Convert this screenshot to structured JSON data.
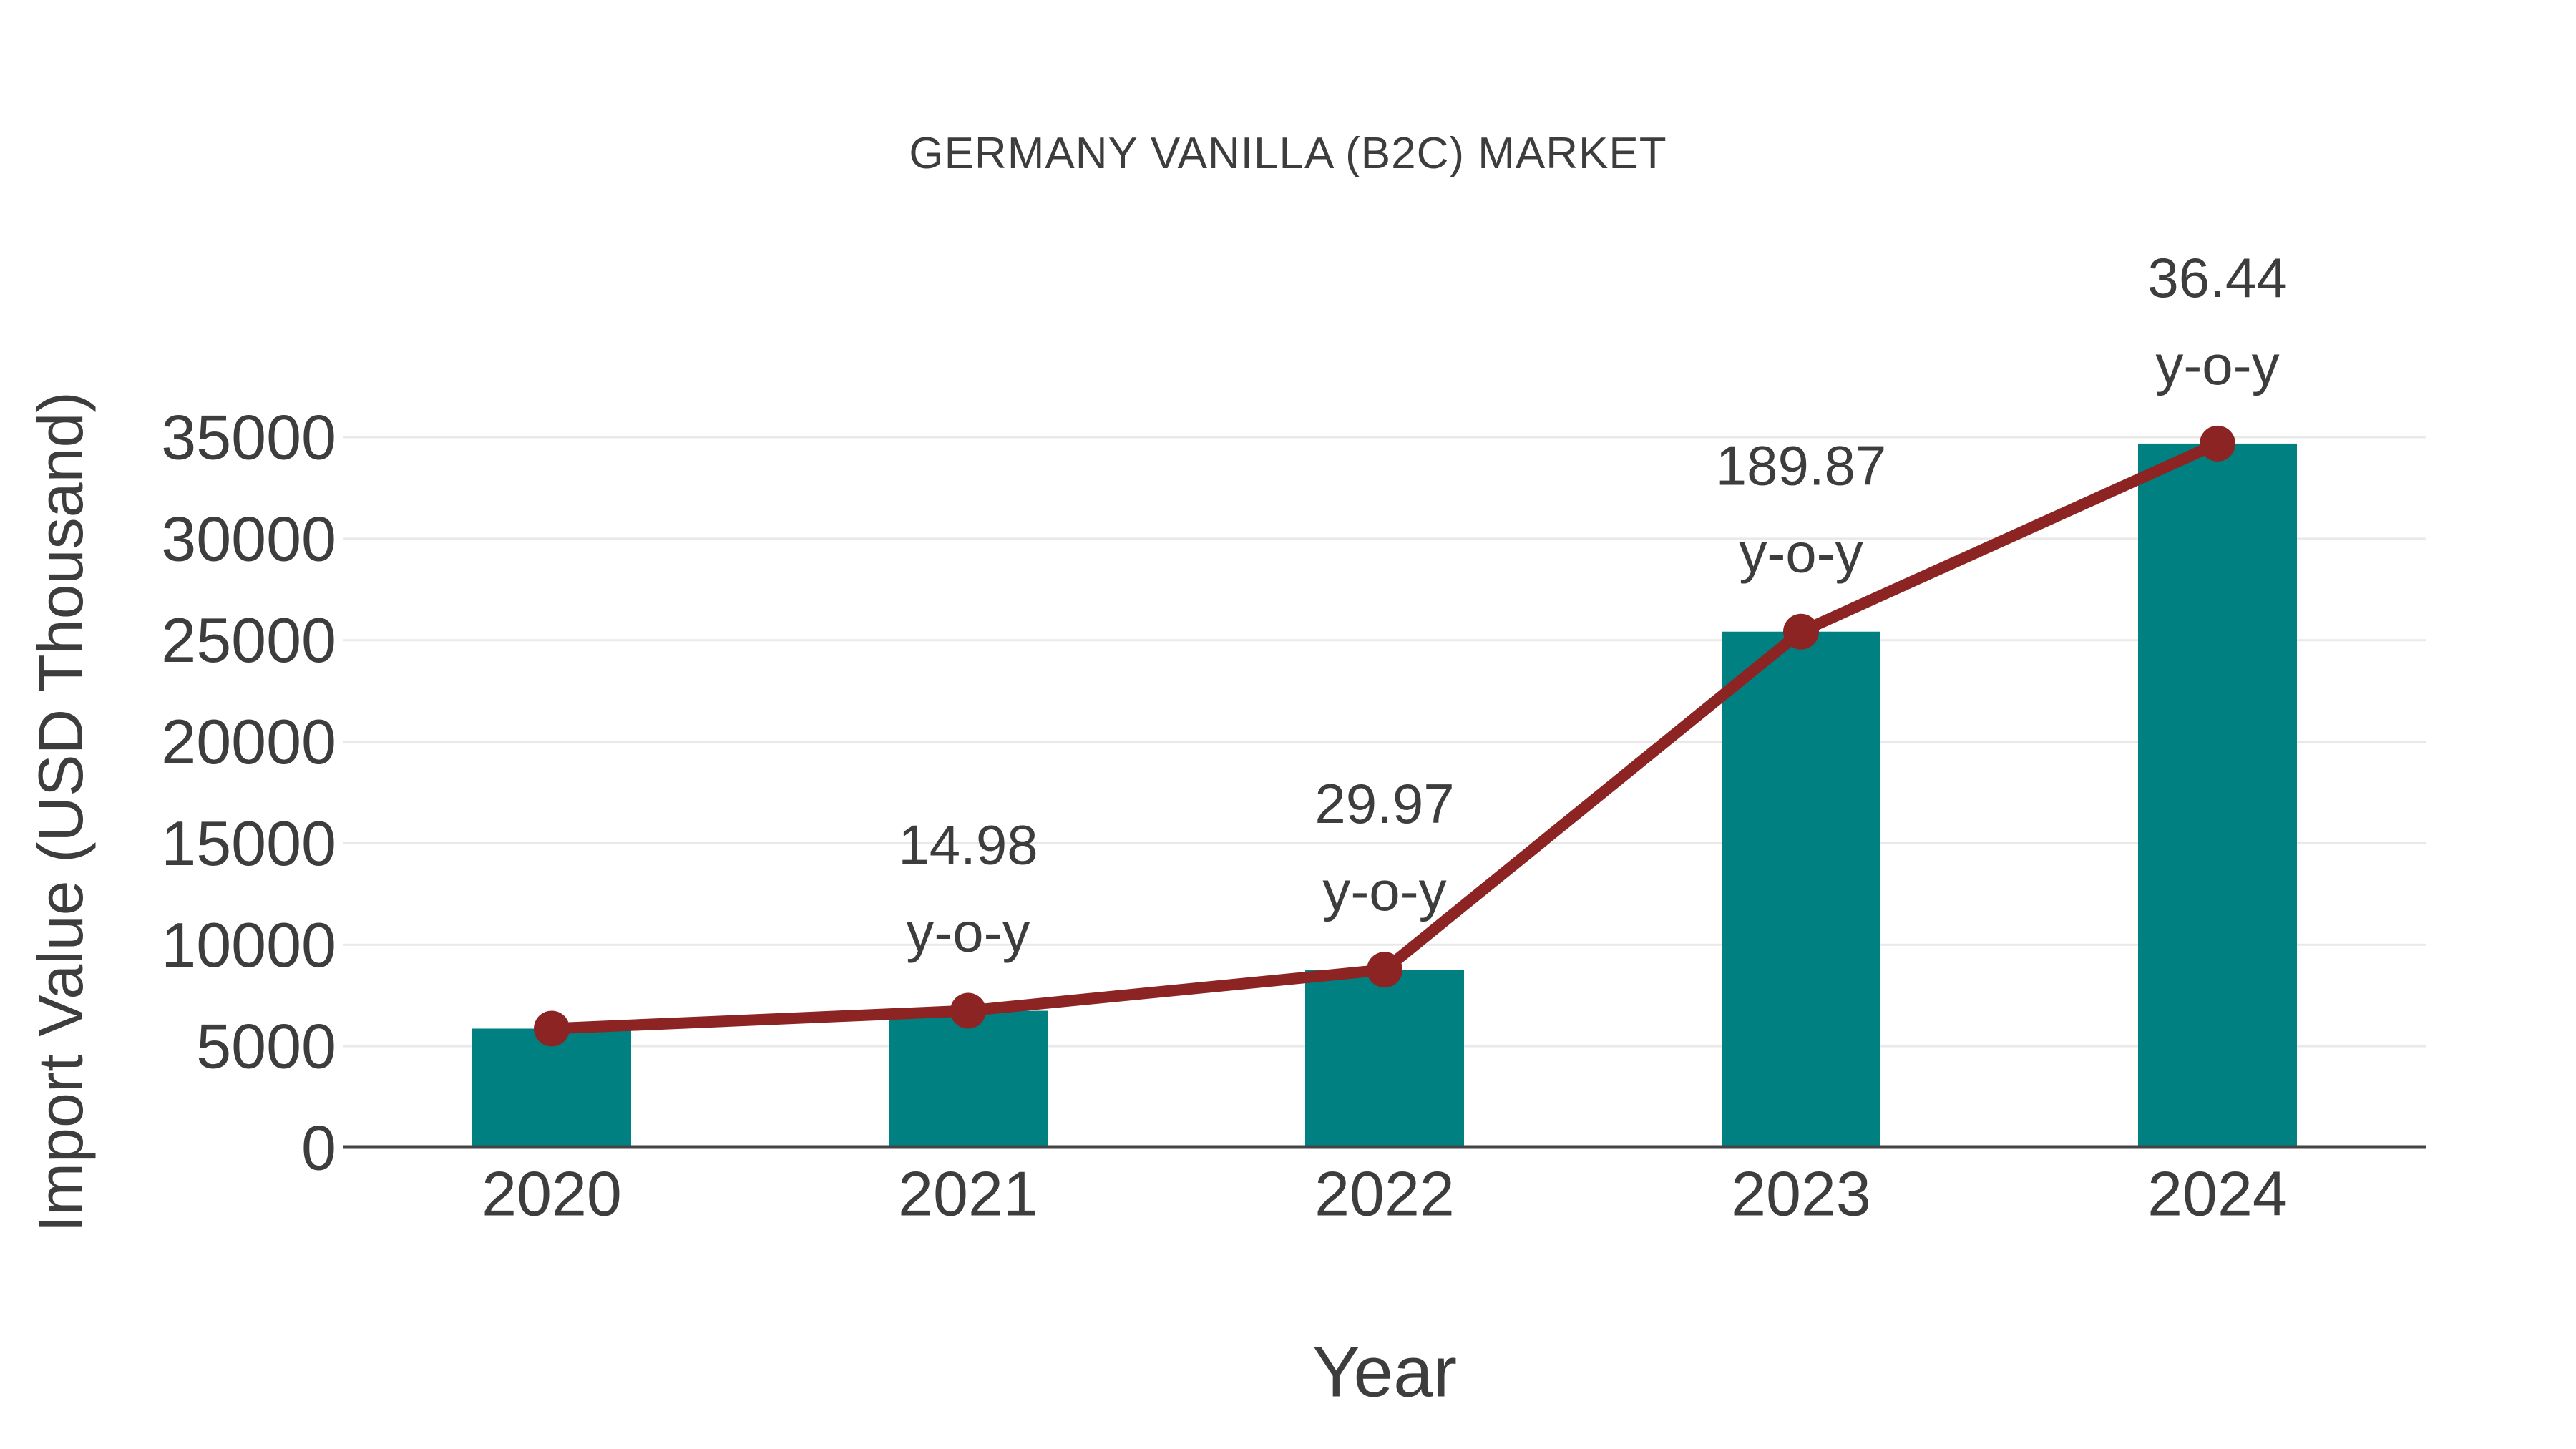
{
  "title": "GERMANY VANILLA (B2C) MARKET",
  "chart_data": {
    "type": "bar+line",
    "title": "GERMANY VANILLA (B2C) MARKET",
    "xlabel": "Year",
    "ylabel": "Import Value (USD Thousand)",
    "categories": [
      "2020",
      "2021",
      "2022",
      "2023",
      "2024"
    ],
    "series": [
      {
        "name": "Import Value (USD Thousand)",
        "type": "bar",
        "color": "#008080",
        "values": [
          5869,
          6748,
          8770,
          25422,
          34686
        ]
      },
      {
        "name": "Import Value trend",
        "type": "line",
        "color": "#8B2423",
        "marker": "circle",
        "values": [
          5869,
          6748,
          8770,
          25422,
          34686
        ]
      }
    ],
    "annotations": [
      {
        "category": "2021",
        "value": "14.98",
        "label": "y-o-y"
      },
      {
        "category": "2022",
        "value": "29.97",
        "label": "y-o-y"
      },
      {
        "category": "2023",
        "value": "189.87",
        "label": "y-o-y"
      },
      {
        "category": "2024",
        "value": "36.44",
        "label": "y-o-y"
      }
    ],
    "ylim": [
      0,
      35000
    ],
    "yticks": [
      0,
      5000,
      10000,
      15000,
      20000,
      25000,
      30000,
      35000
    ],
    "grid": "horizontal",
    "legend": "none",
    "colors": {
      "bar": "#008080",
      "line": "#8B2423",
      "gridline": "#e9e9e9",
      "axis_line": "#444444",
      "text": "#3d3d3d"
    }
  }
}
